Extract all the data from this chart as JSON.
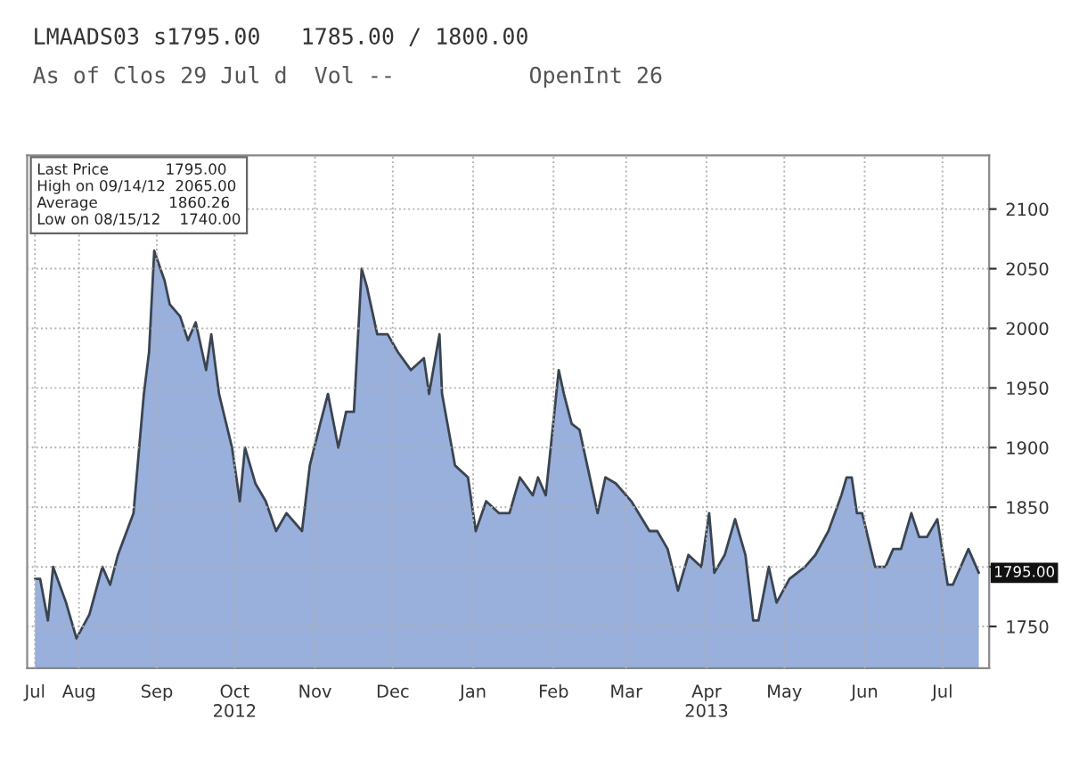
{
  "chart_data": {
    "type": "area",
    "title": "LMAADS03 s1795.00   1785.00 / 1800.00",
    "subtitle": "As of Clos 29 Jul d  Vol --          OpenInt 26",
    "annotations": [
      "Last Price            1795.00",
      "High on 09/14/12  2065.00",
      "Average               1860.26",
      "Low on 08/15/12    1740.00",
      {
        "text": "1795.00",
        "x": "2013-07-29",
        "y": 1795
      }
    ],
    "x": [
      "2012-07-30",
      "2012-08-01",
      "2012-08-04",
      "2012-08-06",
      "2012-08-11",
      "2012-08-15",
      "2012-08-20",
      "2012-08-25",
      "2012-08-28",
      "2012-08-31",
      "2012-09-06",
      "2012-09-10",
      "2012-09-12",
      "2012-09-14",
      "2012-09-18",
      "2012-09-20",
      "2012-09-24",
      "2012-09-27",
      "2012-09-30",
      "2012-10-04",
      "2012-10-06",
      "2012-10-09",
      "2012-10-14",
      "2012-10-17",
      "2012-10-19",
      "2012-10-23",
      "2012-10-27",
      "2012-10-31",
      "2012-11-04",
      "2012-11-10",
      "2012-11-13",
      "2012-11-17",
      "2012-11-20",
      "2012-11-24",
      "2012-11-27",
      "2012-11-30",
      "2012-12-03",
      "2012-12-05",
      "2012-12-09",
      "2012-12-13",
      "2012-12-17",
      "2012-12-22",
      "2012-12-27",
      "2012-12-29",
      "2013-01-02",
      "2013-01-03",
      "2013-01-08",
      "2013-01-13",
      "2013-01-16",
      "2013-01-20",
      "2013-01-25",
      "2013-01-29",
      "2013-02-02",
      "2013-02-07",
      "2013-02-09",
      "2013-02-12",
      "2013-02-17",
      "2013-02-19",
      "2013-02-22",
      "2013-02-25",
      "2013-02-28",
      "2013-03-04",
      "2013-03-07",
      "2013-03-11",
      "2013-03-17",
      "2013-03-24",
      "2013-03-27",
      "2013-03-31",
      "2013-04-04",
      "2013-04-08",
      "2013-04-13",
      "2013-04-16",
      "2013-04-18",
      "2013-04-22",
      "2013-04-26",
      "2013-04-30",
      "2013-05-03",
      "2013-05-05",
      "2013-05-09",
      "2013-05-12",
      "2013-05-17",
      "2013-05-23",
      "2013-05-27",
      "2013-06-01",
      "2013-06-06",
      "2013-06-08",
      "2013-06-10",
      "2013-06-12",
      "2013-06-14",
      "2013-06-19",
      "2013-06-23",
      "2013-06-26",
      "2013-06-29",
      "2013-07-03",
      "2013-07-06",
      "2013-07-09",
      "2013-07-13",
      "2013-07-17",
      "2013-07-19",
      "2013-07-25",
      "2013-07-29"
    ],
    "series": [
      {
        "color": "#8ea6d8",
        "values": [
          1790,
          1790,
          1755,
          1800,
          1770,
          1740,
          1760,
          1800,
          1785,
          1810,
          1845,
          1945,
          1980,
          2065,
          2040,
          2020,
          2010,
          1990,
          2005,
          1965,
          1995,
          1945,
          1900,
          1855,
          1900,
          1870,
          1855,
          1830,
          1845,
          1830,
          1885,
          1920,
          1945,
          1900,
          1930,
          1930,
          2050,
          2035,
          1995,
          1995,
          1980,
          1965,
          1975,
          1945,
          1995,
          1945,
          1885,
          1875,
          1830,
          1855,
          1845,
          1845,
          1875,
          1860,
          1875,
          1860,
          1965,
          1945,
          1920,
          1915,
          1885,
          1845,
          1875,
          1870,
          1855,
          1830,
          1830,
          1815,
          1780,
          1810,
          1800,
          1845,
          1795,
          1810,
          1840,
          1810,
          1755,
          1755,
          1800,
          1770,
          1790,
          1800,
          1810,
          1830,
          1860,
          1875,
          1875,
          1845,
          1845,
          1800,
          1800,
          1815,
          1815,
          1845,
          1825,
          1825,
          1840,
          1785,
          1785,
          1815,
          1795
        ]
      }
    ],
    "xlim": [
      "2012-07-27",
      "2013-08-02"
    ],
    "xticks": [
      {
        "value": "2012-07-30",
        "label": "Jul"
      },
      {
        "value": "2012-08-16",
        "label": "Aug"
      },
      {
        "value": "2012-09-15",
        "label": "Sep"
      },
      {
        "value": "2012-10-15",
        "label": "Oct\n2012"
      },
      {
        "value": "2012-11-15",
        "label": "Nov"
      },
      {
        "value": "2012-12-15",
        "label": "Dec"
      },
      {
        "value": "2013-01-15",
        "label": "Jan"
      },
      {
        "value": "2013-02-15",
        "label": "Feb"
      },
      {
        "value": "2013-03-15",
        "label": "Mar"
      },
      {
        "value": "2013-04-15",
        "label": "Apr\n2013"
      },
      {
        "value": "2013-05-15",
        "label": "May"
      },
      {
        "value": "2013-06-15",
        "label": "Jun"
      },
      {
        "value": "2013-07-15",
        "label": "Jul"
      }
    ],
    "ylim": [
      1715,
      2145
    ],
    "yticks": [
      1750,
      {
        "value": 1800,
        "label": null
      },
      1850,
      1900,
      1950,
      2000,
      2050,
      2100
    ],
    "grid": true
  }
}
